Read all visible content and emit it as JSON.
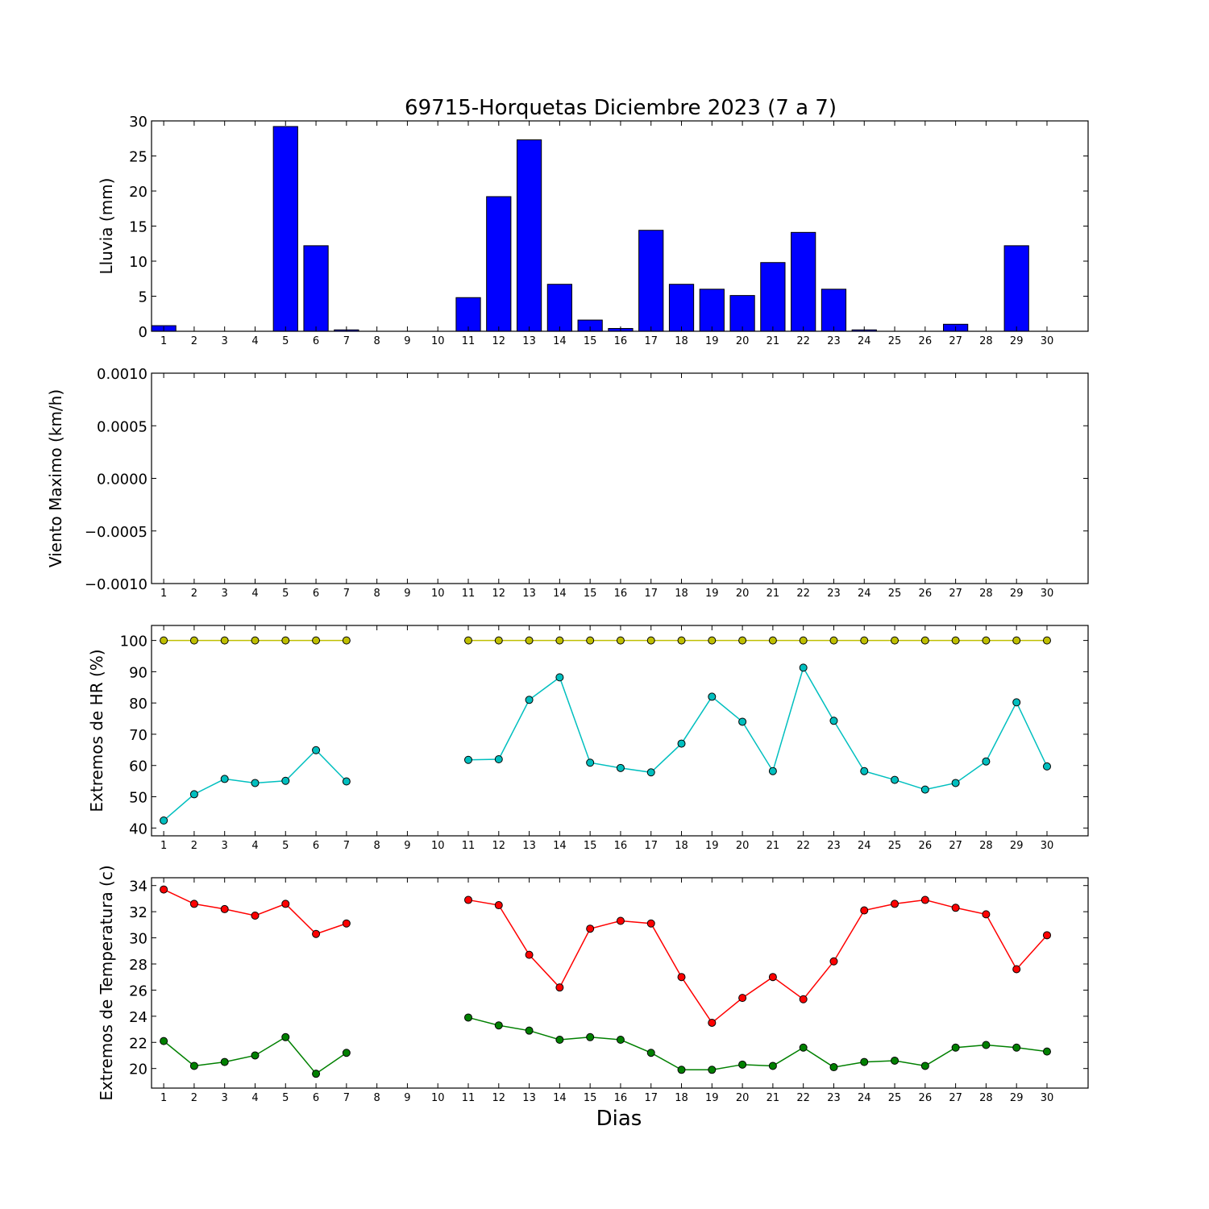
{
  "figure": {
    "title": "69715-Horquetas Diciembre 2023  (7 a 7)",
    "xlabel": "Dias"
  },
  "chart_data": [
    {
      "type": "bar",
      "id": "rain",
      "ylabel": "Lluvia (mm)",
      "ylim": [
        0,
        30
      ],
      "yticks": [
        0,
        5,
        10,
        15,
        20,
        25,
        30
      ],
      "ytick_labels": [
        "0",
        "5",
        "10",
        "15",
        "20",
        "25",
        "30"
      ],
      "categories": [
        1,
        2,
        3,
        4,
        5,
        6,
        7,
        8,
        9,
        10,
        11,
        12,
        13,
        14,
        15,
        16,
        17,
        18,
        19,
        20,
        21,
        22,
        23,
        24,
        25,
        26,
        27,
        28,
        29,
        30
      ],
      "values": [
        0.8,
        0,
        0,
        0,
        29.2,
        12.2,
        0.2,
        null,
        null,
        null,
        4.8,
        19.2,
        27.3,
        6.7,
        1.6,
        0.4,
        14.4,
        6.7,
        6.0,
        5.1,
        9.8,
        14.1,
        6.0,
        0.2,
        0,
        0,
        1.0,
        0,
        12.2,
        null
      ],
      "color": "#0000ff",
      "grid": false
    },
    {
      "type": "line",
      "id": "wind",
      "ylabel": "Viento Maximo (km/h)",
      "ylim": [
        -0.001,
        0.001
      ],
      "yticks": [
        -0.001,
        -0.0005,
        0,
        0.0005,
        0.001
      ],
      "ytick_labels": [
        "−0.0010",
        "−0.0005",
        "0.0000",
        "0.0005",
        "0.0010"
      ],
      "categories": [
        1,
        2,
        3,
        4,
        5,
        6,
        7,
        8,
        9,
        10,
        11,
        12,
        13,
        14,
        15,
        16,
        17,
        18,
        19,
        20,
        21,
        22,
        23,
        24,
        25,
        26,
        27,
        28,
        29,
        30
      ],
      "series": [],
      "grid": false
    },
    {
      "type": "line",
      "id": "humidity",
      "ylabel": "Extremos de HR (%)",
      "ylim": [
        37.5,
        104.8
      ],
      "yticks": [
        40,
        50,
        60,
        70,
        80,
        90,
        100
      ],
      "ytick_labels": [
        "40",
        "50",
        "60",
        "70",
        "80",
        "90",
        "100"
      ],
      "categories": [
        1,
        2,
        3,
        4,
        5,
        6,
        7,
        8,
        9,
        10,
        11,
        12,
        13,
        14,
        15,
        16,
        17,
        18,
        19,
        20,
        21,
        22,
        23,
        24,
        25,
        26,
        27,
        28,
        29,
        30
      ],
      "series": [
        {
          "color": "#bfbf00",
          "values": [
            100,
            100,
            100,
            100,
            100,
            100,
            100,
            null,
            null,
            null,
            100,
            100,
            100,
            100,
            100,
            100,
            100,
            100,
            100,
            100,
            100,
            100,
            100,
            100,
            100,
            100,
            100,
            100,
            100,
            100
          ]
        },
        {
          "color": "#00bfbf",
          "values": [
            42.4,
            50.8,
            55.7,
            54.4,
            55.1,
            64.9,
            54.9,
            null,
            null,
            null,
            61.8,
            62.0,
            81.0,
            88.2,
            60.9,
            59.2,
            57.8,
            67.0,
            82.0,
            74.0,
            58.2,
            91.3,
            74.3,
            58.2,
            55.4,
            52.3,
            54.4,
            61.3,
            80.2,
            59.7
          ]
        }
      ],
      "grid": false
    },
    {
      "type": "line",
      "id": "temperature",
      "ylabel": "Extremos de Temperatura (c)",
      "ylim": [
        18.5,
        34.6
      ],
      "yticks": [
        20,
        22,
        24,
        26,
        28,
        30,
        32,
        34
      ],
      "ytick_labels": [
        "20",
        "22",
        "24",
        "26",
        "28",
        "30",
        "32",
        "34"
      ],
      "categories": [
        1,
        2,
        3,
        4,
        5,
        6,
        7,
        8,
        9,
        10,
        11,
        12,
        13,
        14,
        15,
        16,
        17,
        18,
        19,
        20,
        21,
        22,
        23,
        24,
        25,
        26,
        27,
        28,
        29,
        30
      ],
      "series": [
        {
          "color": "#ff0000",
          "values": [
            33.7,
            32.6,
            32.2,
            31.7,
            32.6,
            30.3,
            31.1,
            null,
            null,
            null,
            32.9,
            32.5,
            28.7,
            26.2,
            30.7,
            31.3,
            31.1,
            27.0,
            23.5,
            25.4,
            27.0,
            25.3,
            28.2,
            32.1,
            32.6,
            32.9,
            32.3,
            31.8,
            27.6,
            30.2
          ]
        },
        {
          "color": "#008000",
          "values": [
            22.1,
            20.2,
            20.5,
            21.0,
            22.4,
            19.6,
            21.2,
            null,
            null,
            null,
            23.9,
            23.3,
            22.9,
            22.2,
            22.4,
            22.2,
            21.2,
            19.9,
            19.9,
            20.3,
            20.2,
            21.6,
            20.1,
            20.5,
            20.6,
            20.2,
            21.6,
            21.8,
            21.6,
            21.3
          ]
        }
      ],
      "grid": false
    }
  ]
}
